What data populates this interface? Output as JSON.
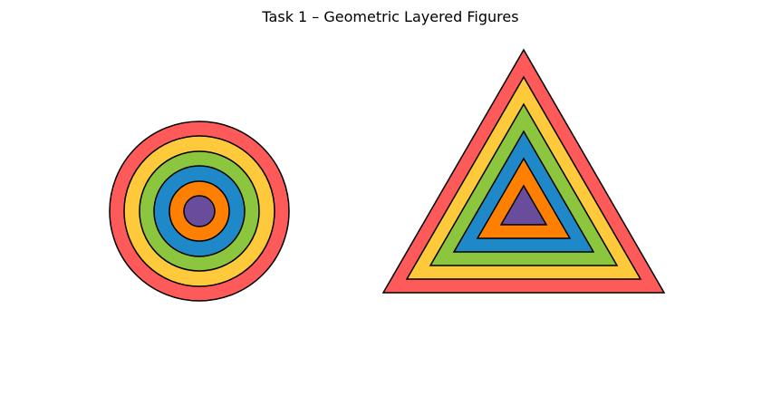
{
  "title": "Task 1 – Geometric Layered Figures",
  "palette": {
    "red": "#ff5a5a",
    "yellow": "#ffc93c",
    "green": "#8cc63f",
    "blue": "#1e88c8",
    "orange": "#ff8000",
    "purple": "#6a4c9c"
  },
  "figures": [
    {
      "name": "concentric-circles",
      "layers": [
        "red",
        "yellow",
        "green",
        "blue",
        "orange",
        "purple"
      ]
    },
    {
      "name": "nested-triangles",
      "layers": [
        "red",
        "yellow",
        "green",
        "blue",
        "orange",
        "purple"
      ]
    }
  ]
}
